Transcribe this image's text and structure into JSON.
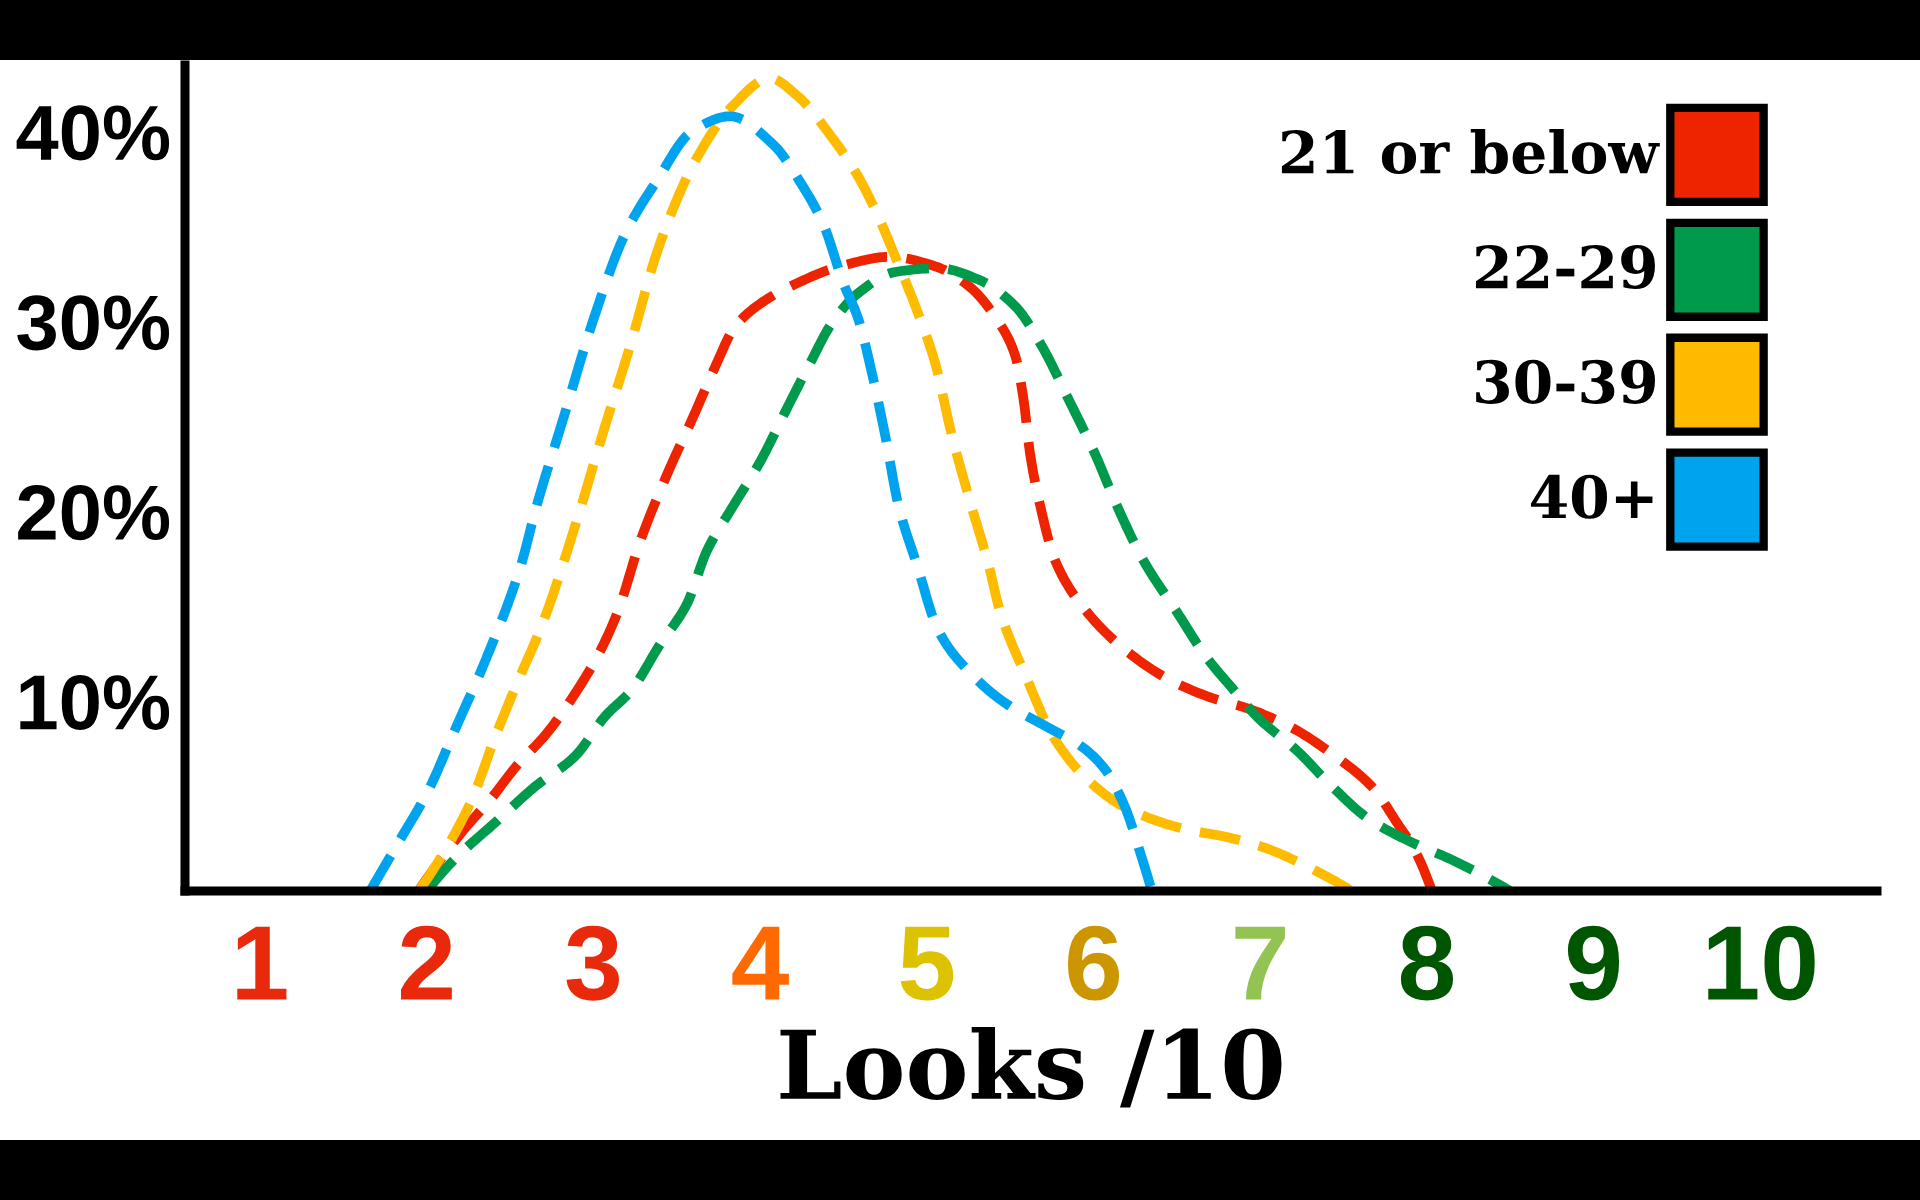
{
  "chart_data": {
    "type": "line",
    "xlabel": "Looks /10",
    "series": [
      {
        "name": "21 or below",
        "color": "#ee2400",
        "x": [
          1.95,
          2.22,
          2.38,
          2.54,
          2.72,
          2.89,
          3.05,
          3.15,
          3.28,
          3.44,
          3.6,
          3.74,
          3.84,
          3.98,
          4.22,
          4.48,
          4.78,
          5.05,
          5.26,
          5.42,
          5.53,
          5.58,
          5.62,
          5.68,
          5.77,
          5.96,
          6.19,
          6.44,
          6.7,
          6.93,
          7.19,
          7.45,
          7.68,
          7.82,
          7.93,
          8.03
        ],
        "values": [
          0,
          3.2,
          4.8,
          6.6,
          8.3,
          10.4,
          12.8,
          14.8,
          18.4,
          21.9,
          25.0,
          27.8,
          29.6,
          30.8,
          32.0,
          32.9,
          33.4,
          32.9,
          31.8,
          30.1,
          28.2,
          25.9,
          23.0,
          20.3,
          17.4,
          14.7,
          12.7,
          11.2,
          10.2,
          9.6,
          8.6,
          7.1,
          5.4,
          3.6,
          2.1,
          0
        ]
      },
      {
        "name": "22-29",
        "color": "#009a4c",
        "x": [
          2.0,
          2.17,
          2.41,
          2.65,
          2.89,
          3.07,
          3.23,
          3.4,
          3.56,
          3.68,
          3.84,
          4.0,
          4.16,
          4.3,
          4.43,
          4.59,
          4.81,
          5.07,
          5.31,
          5.53,
          5.69,
          5.85,
          6.01,
          6.14,
          6.3,
          6.5,
          6.67,
          6.84,
          6.99,
          7.22,
          7.42,
          7.65,
          7.9,
          8.16,
          8.5
        ],
        "values": [
          0,
          1.7,
          3.6,
          5.5,
          7.1,
          9.2,
          10.6,
          13.0,
          15.1,
          17.9,
          20.3,
          22.6,
          25.4,
          27.8,
          29.9,
          31.5,
          32.6,
          32.8,
          32.2,
          30.8,
          28.7,
          25.9,
          23.0,
          20.3,
          17.4,
          14.7,
          12.4,
          10.6,
          9.1,
          7.4,
          5.6,
          3.8,
          2.6,
          1.6,
          0
        ]
      },
      {
        "name": "30-39",
        "color": "#ffbb00",
        "x": [
          1.95,
          2.08,
          2.27,
          2.41,
          2.54,
          2.7,
          2.9,
          3.06,
          3.22,
          3.38,
          3.54,
          3.62,
          3.82,
          4.06,
          4.22,
          4.43,
          4.59,
          4.72,
          4.82,
          4.94,
          5.05,
          5.15,
          5.26,
          5.37,
          5.44,
          5.59,
          5.76,
          5.96,
          6.19,
          6.53,
          6.82,
          7.02,
          7.28,
          7.55
        ],
        "values": [
          0,
          1.7,
          4.8,
          8.1,
          10.9,
          14.2,
          19.5,
          24.2,
          28.7,
          33.6,
          37.2,
          38.6,
          41.2,
          42.8,
          41.9,
          39.7,
          37.6,
          35.3,
          33.2,
          30.6,
          27.8,
          24.0,
          20.5,
          17.2,
          14.7,
          11.4,
          8.1,
          5.9,
          4.4,
          3.3,
          2.8,
          2.3,
          1.3,
          0
        ]
      },
      {
        "name": "40+",
        "color": "#00a4ee",
        "x": [
          1.66,
          1.84,
          2.01,
          2.17,
          2.35,
          2.56,
          2.66,
          2.82,
          3.0,
          3.19,
          3.38,
          3.59,
          3.82,
          4.08,
          4.25,
          4.38,
          4.5,
          4.59,
          4.67,
          4.75,
          4.83,
          4.94,
          5.07,
          5.27,
          5.47,
          5.73,
          5.93,
          6.07,
          6.19,
          6.27,
          6.35
        ],
        "values": [
          0,
          2.7,
          5.3,
          8.5,
          12.1,
          17.0,
          20.3,
          24.9,
          30.1,
          34.6,
          37.4,
          40.0,
          40.8,
          39.3,
          37.2,
          35.1,
          32.0,
          30.1,
          27.3,
          24.0,
          20.3,
          17.2,
          13.7,
          11.4,
          9.9,
          8.6,
          7.6,
          6.4,
          4.4,
          2.3,
          0
        ]
      }
    ],
    "xlim": [
      0.55,
      10.7
    ],
    "xticks": [
      1,
      2,
      3,
      4,
      5,
      6,
      7,
      8,
      9,
      10
    ],
    "ylim": [
      0,
      43.5
    ],
    "yticks": [
      {
        "value": 10,
        "label": "10%"
      },
      {
        "value": 20,
        "label": "20%"
      },
      {
        "value": 30,
        "label": "30%"
      },
      {
        "value": 40,
        "label": "40%"
      }
    ],
    "legend": "top right",
    "line_style": "dashed",
    "marker": "none",
    "grid": false
  }
}
